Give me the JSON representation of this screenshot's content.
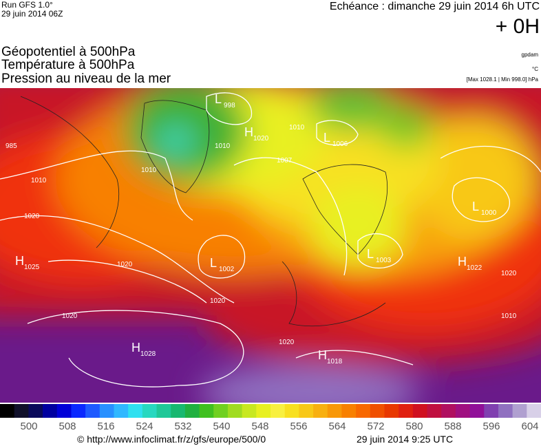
{
  "header": {
    "run": "Run GFS 1.0°",
    "date": "29 juin 2014 06Z",
    "echeance": "Echéance : dimanche 29 juin 2014 6h UTC",
    "offset": "+ 0H",
    "fields": [
      "Géopotentiel à 500hPa",
      "Température à 500hPa",
      "Pression au niveau de la mer"
    ],
    "units": [
      "gpdam",
      "°C",
      "[Max 1028.1 | Min 998.0] hPa"
    ]
  },
  "pressure_centers": [
    {
      "letter": "H",
      "value": 1025
    },
    {
      "letter": "L",
      "value": 998
    },
    {
      "letter": "H",
      "value": 1020
    },
    {
      "letter": "L",
      "value": 1006
    },
    {
      "letter": "L",
      "value": 1000
    },
    {
      "letter": "L",
      "value": 1002
    },
    {
      "letter": "L",
      "value": 1003
    },
    {
      "letter": "H",
      "value": 1022
    },
    {
      "letter": "H",
      "value": 1028
    },
    {
      "letter": "H",
      "value": 1018
    }
  ],
  "isobar_labels": [
    "985",
    "1010",
    "1020",
    "1020",
    "1020",
    "1020",
    "1010",
    "1007",
    "1010",
    "1010",
    "1020",
    "1010",
    "1020"
  ],
  "colorbar": {
    "colors": [
      "#000000",
      "#10102a",
      "#0a0a5a",
      "#0000a0",
      "#0000d8",
      "#0a28ff",
      "#1e5aff",
      "#2890ff",
      "#30b8ff",
      "#30e0f0",
      "#28d8c0",
      "#20c898",
      "#18b870",
      "#20b040",
      "#40c020",
      "#70d020",
      "#a0dc20",
      "#c8e820",
      "#e8f020",
      "#f8f040",
      "#f8e020",
      "#f8c818",
      "#f8b010",
      "#f89808",
      "#f88000",
      "#f86800",
      "#f05000",
      "#e83800",
      "#e02010",
      "#d01020",
      "#c01040",
      "#b01060",
      "#a01080",
      "#901098",
      "#8040b0",
      "#9070c0",
      "#b0a0d0",
      "#d8d0e8"
    ],
    "ticks": [
      500,
      508,
      516,
      524,
      532,
      540,
      548,
      556,
      564,
      572,
      580,
      588,
      596,
      604
    ]
  },
  "footer": {
    "url": "© http://www.infoclimat.fr/z/gfs/europe/500/0",
    "stamp": "29 juin 2014  9:25 UTC"
  }
}
